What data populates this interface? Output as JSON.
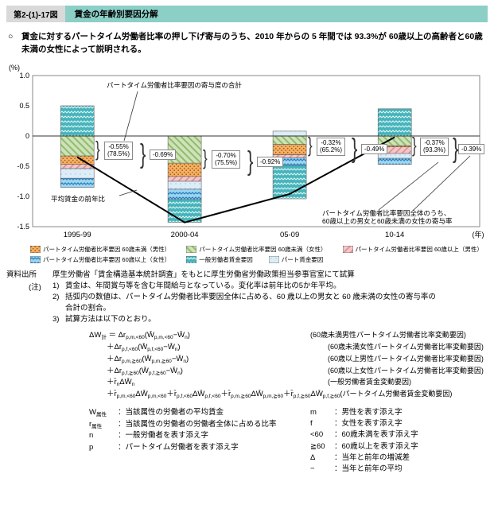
{
  "header": {
    "figure_no": "第2-(1)-17図",
    "title": "賃金の年齢別要因分解"
  },
  "lead": {
    "bullet": "○",
    "text": "賃金に対するパートタイム労働者比率の押し下げ寄与のうち、2010 年からの 5 年間では 93.3%が 60歳以上の高齢者と60歳未満の女性によって説明される。"
  },
  "chart_data": {
    "type": "stacked-bar-with-line",
    "unit": "(%)",
    "x_unit": "(年)",
    "categories": [
      "1995-99",
      "2000-04",
      "05-09",
      "10-14"
    ],
    "ylim": [
      -1.5,
      1.0
    ],
    "yticks": [
      {
        "label": "1.0",
        "v": 1.0
      },
      {
        "label": "0.5",
        "v": 0.5
      },
      {
        "label": "0",
        "v": 0
      },
      {
        "label": "-0.5",
        "v": -0.5
      },
      {
        "label": "-1.0",
        "v": -1.0
      },
      {
        "label": "-1.5",
        "v": -1.5
      }
    ],
    "series": [
      {
        "name": "パートタイム労働者比率要因 60歳未満（男性）",
        "pattern": "orange",
        "values": [
          -0.14,
          -0.22,
          -0.17,
          -0.02
        ]
      },
      {
        "name": "パートタイム労働者比率要因 60歳未満（女性）",
        "pattern": "green",
        "values": [
          -0.33,
          -0.45,
          -0.14,
          -0.16
        ]
      },
      {
        "name": "パートタイム労働者比率要因 60歳以上（男性）",
        "pattern": "pink",
        "values": [
          -0.07,
          -0.08,
          -0.05,
          -0.11
        ]
      },
      {
        "name": "パートタイム労働者比率要因 60歳以上（女性）",
        "pattern": "blue",
        "values": [
          -0.15,
          -0.17,
          -0.13,
          -0.1
        ]
      },
      {
        "name": "一般労働者賃金要因",
        "pattern": "teal",
        "values": [
          0.5,
          -0.38,
          -0.55,
          0.45
        ]
      },
      {
        "name": "パート賃金要因",
        "pattern": "light",
        "values": [
          -0.16,
          -0.13,
          0.08,
          -0.08
        ]
      }
    ],
    "line": {
      "name": "平均賃金の前年比",
      "values": [
        -0.35,
        -1.43,
        -0.96,
        -0.02
      ]
    },
    "annotations": {
      "ratio_total_label": "パートタイム労働者比率要因の寄与度の合計",
      "line_label": "平均賃金の前年比",
      "last_bar_note_1": "パートタイム労働者比率要因全体のうち、",
      "last_bar_note_2": "60歳以上の男女と60歳未満の女性の寄与率",
      "bar_values": [
        {
          "part": "-0.55%",
          "share": "(78.5%)",
          "total": "-0.69%"
        },
        {
          "part": "-0.70%",
          "share": "(75.5%)",
          "total": "-0.92%"
        },
        {
          "part": "-0.32%",
          "share": "(65.2%)",
          "total": "-0.49%"
        },
        {
          "part": "-0.37%",
          "share": "(93.3%)",
          "total": "-0.39%"
        }
      ]
    }
  },
  "source": {
    "label": "資料出所",
    "text": "厚生労働省「賃金構造基本統計調査」をもとに厚生労働省労働政策担当参事官室にて試算"
  },
  "notes": {
    "label": "(注)",
    "items": [
      {
        "no": "1)",
        "text": "賃金は、年間賞与等を含む年間給与となっている。変化率は前年比の5か年平均。"
      },
      {
        "no": "2)",
        "text": "括弧内の数値は、パートタイム労働者比率要因全体に占める、60 歳以上の男女と 60 歳未満の女性の寄与率の合計の割合。"
      },
      {
        "no": "3)",
        "text": "試算方法は以下のとおり。"
      }
    ]
  },
  "formula": {
    "lines": [
      {
        "indent": 0,
        "tokens": [
          {
            "t": "ΔW"
          },
          {
            "t": "計",
            "s": 1
          },
          {
            "t": " ＝ Δr"
          },
          {
            "t": "p,m,<60",
            "s": 1
          },
          {
            "t": "(W̄"
          },
          {
            "t": "p,m,<60",
            "s": 1
          },
          {
            "t": "−W̄"
          },
          {
            "t": "n",
            "s": 1
          },
          {
            "t": ")"
          }
        ],
        "note": "(60歳未満男性パートタイム労働者比率変動要因)"
      },
      {
        "indent": 1,
        "tokens": [
          {
            "t": "＋Δr"
          },
          {
            "t": "p,f,<60",
            "s": 1
          },
          {
            "t": "(W̄"
          },
          {
            "t": "p,f,<60",
            "s": 1
          },
          {
            "t": "−W̄"
          },
          {
            "t": "n",
            "s": 1
          },
          {
            "t": ")"
          }
        ],
        "note": "(60歳未満女性パートタイム労働者比率変動要因)"
      },
      {
        "indent": 1,
        "tokens": [
          {
            "t": "＋Δr"
          },
          {
            "t": "p,m,≧60",
            "s": 1
          },
          {
            "t": "(W̄"
          },
          {
            "t": "p,m,≧60",
            "s": 1
          },
          {
            "t": "−W̄"
          },
          {
            "t": "n",
            "s": 1
          },
          {
            "t": ")"
          }
        ],
        "note": "(60歳以上男性パートタイム労働者比率変動要因)"
      },
      {
        "indent": 1,
        "tokens": [
          {
            "t": "＋Δr"
          },
          {
            "t": "p,f,≧60",
            "s": 1
          },
          {
            "t": "(W̄"
          },
          {
            "t": "p,f,≧60",
            "s": 1
          },
          {
            "t": "−W̄"
          },
          {
            "t": "n",
            "s": 1
          },
          {
            "t": ")"
          }
        ],
        "note": "(60歳以上女性パートタイム労働者比率変動要因)"
      },
      {
        "indent": 1,
        "tokens": [
          {
            "t": "＋r̄"
          },
          {
            "t": "n",
            "s": 1
          },
          {
            "t": "ΔW̄"
          },
          {
            "t": "n",
            "s": 1
          }
        ],
        "note": "(一般労働者賃金変動要因)"
      },
      {
        "indent": 1,
        "tokens": [
          {
            "t": "＋r̄"
          },
          {
            "t": "p,m,<60",
            "s": 1
          },
          {
            "t": "ΔW̄"
          },
          {
            "t": "p,m,<60",
            "s": 1
          },
          {
            "t": "＋r̄"
          },
          {
            "t": "p,f,<60",
            "s": 1
          },
          {
            "t": "ΔW̄"
          },
          {
            "t": "p,f,<60",
            "s": 1
          },
          {
            "t": "＋r̄"
          },
          {
            "t": "p,m,≧60",
            "s": 1
          },
          {
            "t": "ΔW̄"
          },
          {
            "t": "p,m,≧60",
            "s": 1
          },
          {
            "t": "＋r̄"
          },
          {
            "t": "p,f,≧60",
            "s": 1
          },
          {
            "t": "ΔW̄"
          },
          {
            "t": "p,f,≧60",
            "s": 1
          }
        ],
        "note": "(パートタイム労働者賃金変動要因)"
      }
    ]
  },
  "definitions": {
    "left": [
      {
        "tokens": [
          {
            "t": "W"
          },
          {
            "t": "属性",
            "s": 1
          }
        ],
        "desc": "：当該属性の労働者の平均賃金"
      },
      {
        "tokens": [
          {
            "t": "r"
          },
          {
            "t": "属性",
            "s": 1
          }
        ],
        "desc": "：当該属性の労働者の労働者全体に占める比率"
      },
      {
        "tokens": [
          {
            "t": "n"
          }
        ],
        "desc": "：一般労働者を表す添え字"
      },
      {
        "tokens": [
          {
            "t": "p"
          }
        ],
        "desc": "：パートタイム労働者を表す添え字"
      }
    ],
    "right": [
      {
        "tokens": [
          {
            "t": "m"
          }
        ],
        "desc": "：男性を表す添え字"
      },
      {
        "tokens": [
          {
            "t": "f"
          }
        ],
        "desc": "：女性を表す添え字"
      },
      {
        "tokens": [
          {
            "t": "<60"
          }
        ],
        "desc": "：60歳未満を表す添え字"
      },
      {
        "tokens": [
          {
            "t": "≧60"
          }
        ],
        "desc": "：60歳以上を表す添え字"
      },
      {
        "tokens": [
          {
            "t": "Δ"
          }
        ],
        "desc": "：当年と前年の増減差"
      },
      {
        "tokens": [
          {
            "t": "−"
          }
        ],
        "desc": "：当年と前年の平均"
      }
    ]
  }
}
